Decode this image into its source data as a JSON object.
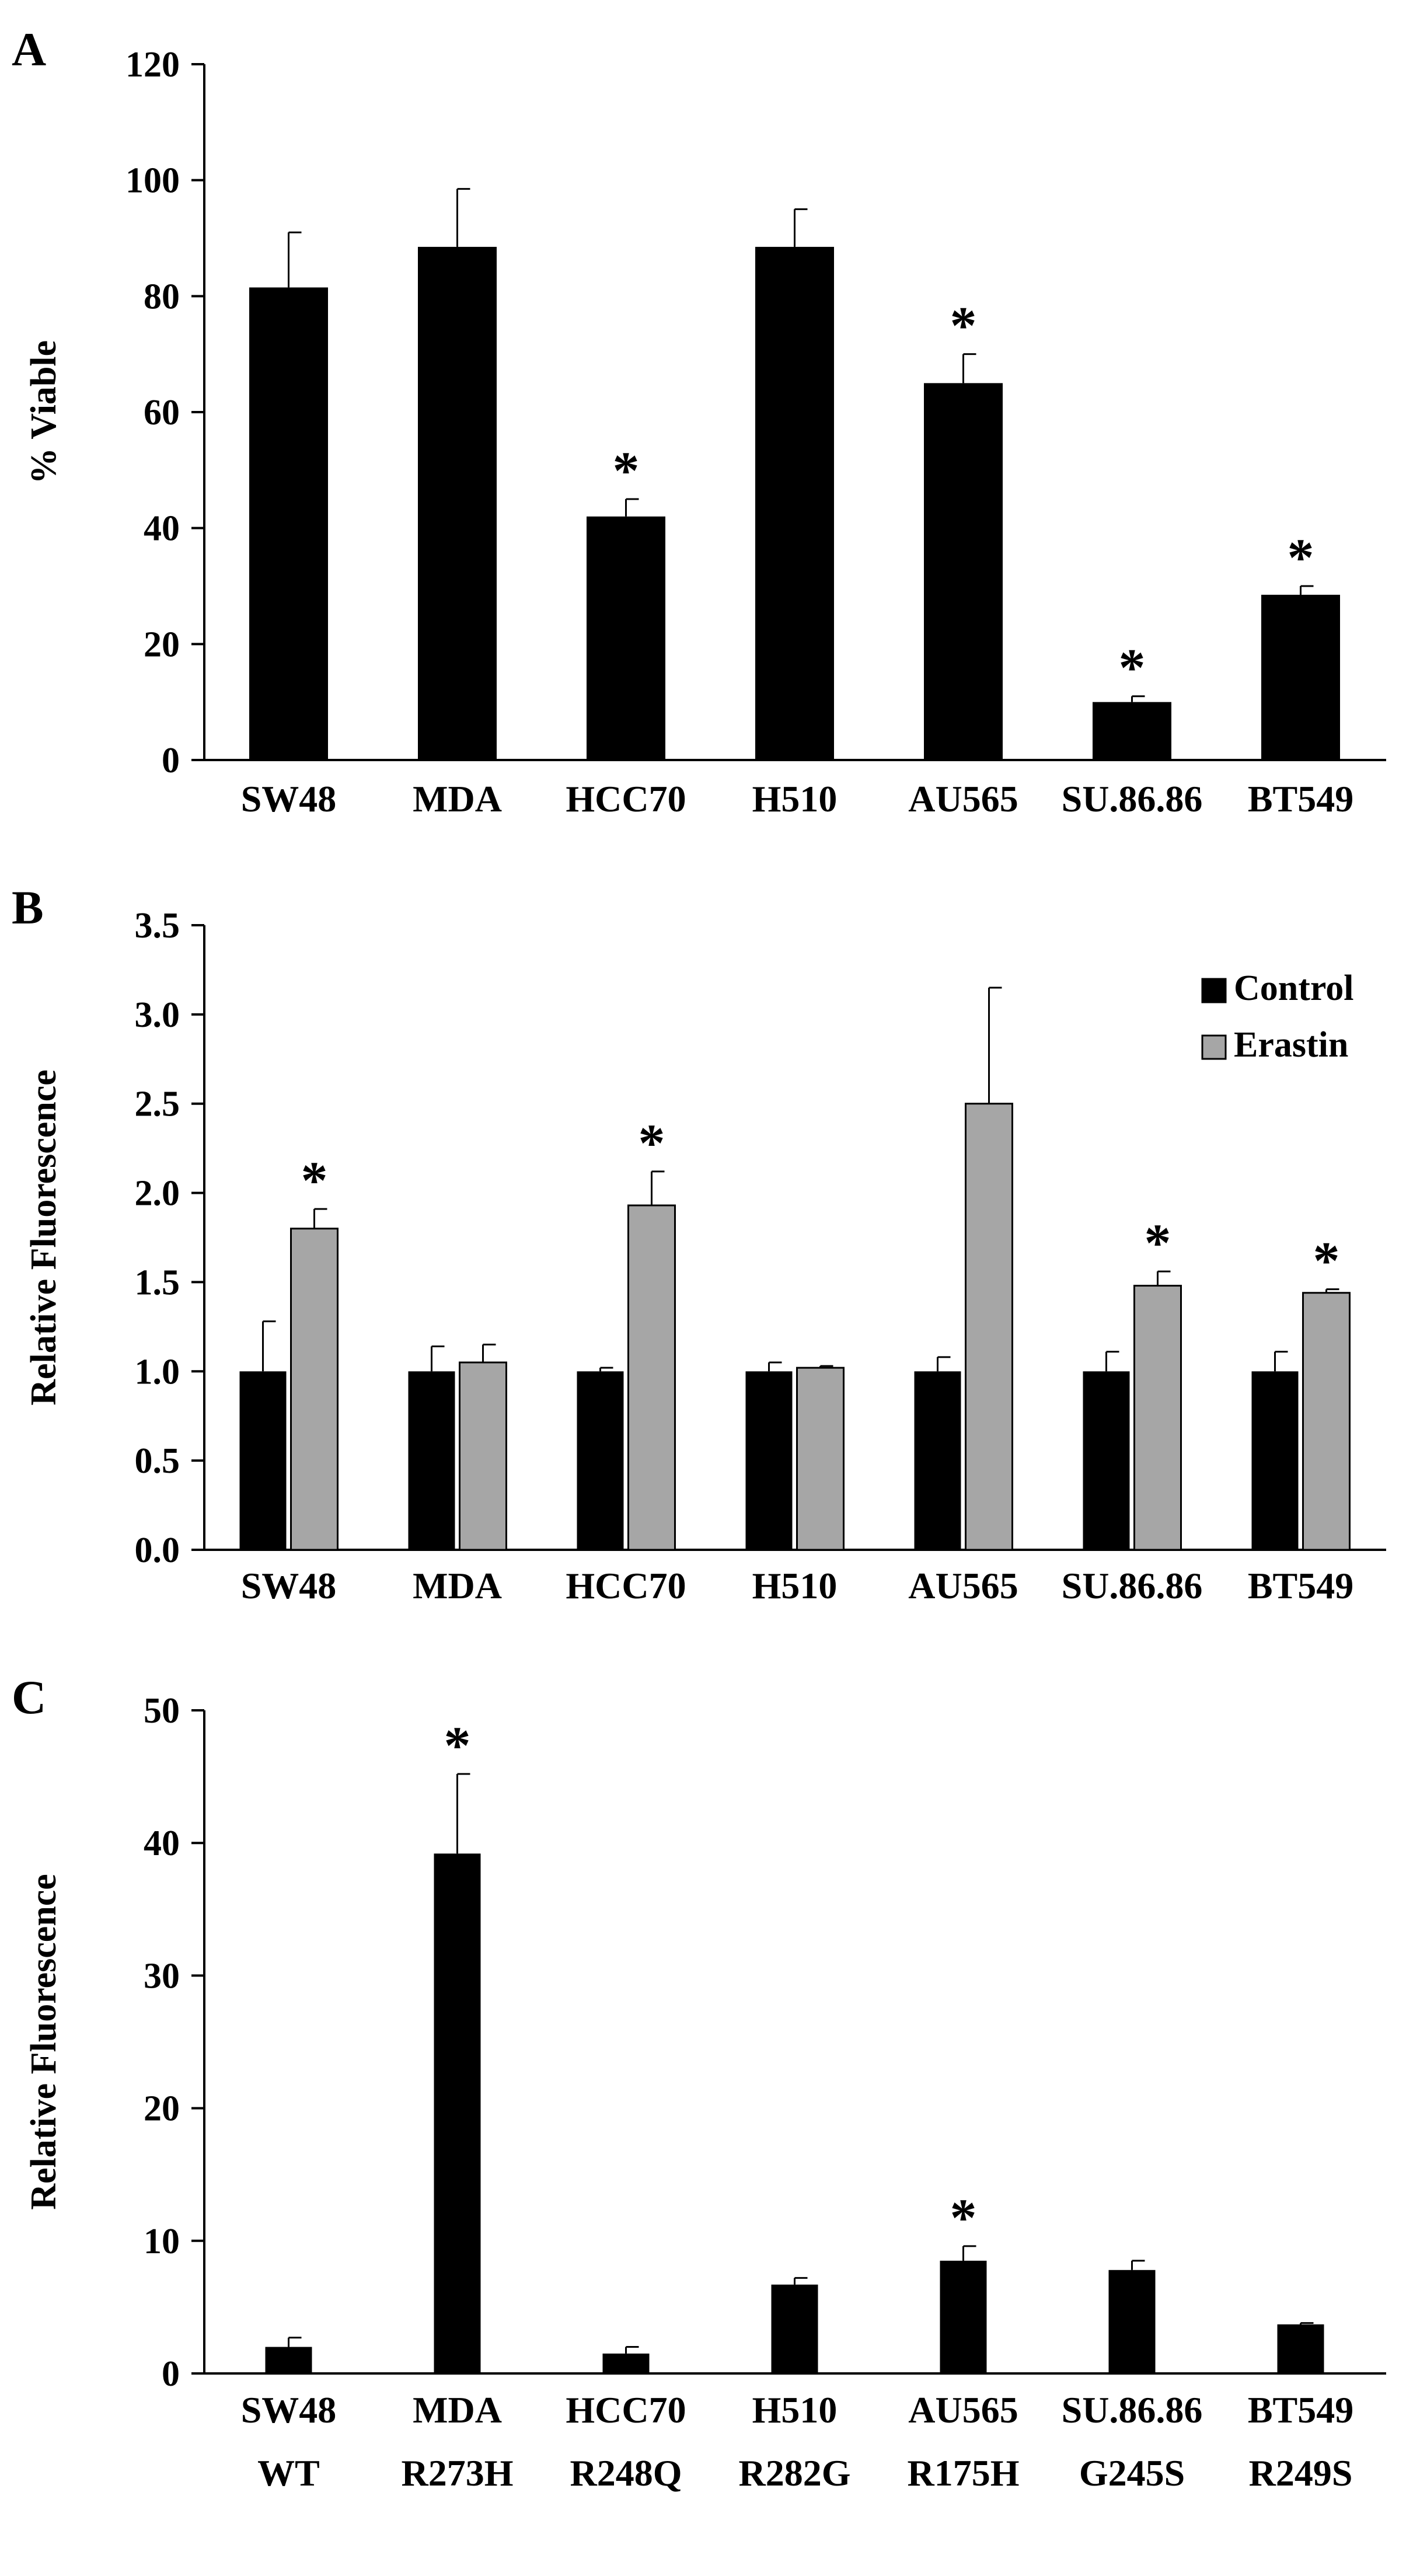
{
  "colors": {
    "control": "#000000",
    "erastin": "#a6a6a6",
    "axis": "#000000"
  },
  "chart_data": [
    {
      "panel": "A",
      "type": "bar",
      "categories": [
        "SW48",
        "MDA",
        "HCC70",
        "H510",
        "AU565",
        "SU.86.86",
        "BT549"
      ],
      "series": [
        {
          "name": "% Viable",
          "values": [
            81.5,
            88.5,
            42,
            88.5,
            65,
            10,
            28.5
          ],
          "errors": [
            9.5,
            10,
            3,
            6.5,
            5,
            1,
            1.5
          ]
        }
      ],
      "significant": [
        false,
        false,
        true,
        false,
        true,
        true,
        true
      ],
      "significance_mark": "*",
      "ylabel": "% Viable",
      "ylim": [
        0,
        120
      ],
      "yticks": [
        0,
        20,
        40,
        60,
        80,
        100,
        120
      ],
      "ytick_labels": [
        "0",
        "20",
        "40",
        "60",
        "80",
        "100",
        "120"
      ],
      "legend": null
    },
    {
      "panel": "B",
      "type": "bar",
      "categories": [
        "SW48",
        "MDA",
        "HCC70",
        "H510",
        "AU565",
        "SU.86.86",
        "BT549"
      ],
      "series": [
        {
          "name": "Control",
          "values": [
            1.0,
            1.0,
            1.0,
            1.0,
            1.0,
            1.0,
            1.0
          ],
          "errors": [
            0.28,
            0.14,
            0.02,
            0.05,
            0.08,
            0.11,
            0.11
          ]
        },
        {
          "name": "Erastin",
          "values": [
            1.8,
            1.05,
            1.93,
            1.02,
            2.5,
            1.48,
            1.44
          ],
          "errors": [
            0.11,
            0.1,
            0.19,
            0.01,
            0.65,
            0.08,
            0.02
          ]
        }
      ],
      "significant": [
        true,
        false,
        true,
        false,
        false,
        true,
        true
      ],
      "significance_mark": "*",
      "ylabel": "Relative Fluorescence",
      "ylim": [
        0,
        3.5
      ],
      "yticks": [
        0,
        0.5,
        1,
        1.5,
        2,
        2.5,
        3,
        3.5
      ],
      "ytick_labels": [
        "0.0",
        "0.5",
        "1.0",
        "1.5",
        "2.0",
        "2.5",
        "3.0",
        "3.5"
      ],
      "legend": {
        "position": "top-right",
        "entries": [
          "Control",
          "Erastin"
        ]
      }
    },
    {
      "panel": "C",
      "type": "bar",
      "categories": [
        "SW48",
        "MDA",
        "HCC70",
        "H510",
        "AU565",
        "SU.86.86",
        "BT549"
      ],
      "subcategories": [
        "WT",
        "R273H",
        "R248Q",
        "R282G",
        "R175H",
        "G245S",
        "R249S"
      ],
      "series": [
        {
          "name": "Relative Fluorescence",
          "values": [
            2,
            39.2,
            1.5,
            6.7,
            8.5,
            7.8,
            3.7
          ],
          "errors": [
            0.7,
            6,
            0.5,
            0.5,
            1.1,
            0.7,
            0.1
          ]
        }
      ],
      "significant": [
        false,
        true,
        false,
        false,
        true,
        false,
        false
      ],
      "significance_mark": "*",
      "ylabel": "Relative Fluorescence",
      "ylim": [
        0,
        50
      ],
      "yticks": [
        0,
        10,
        20,
        30,
        40,
        50
      ],
      "ytick_labels": [
        "0",
        "10",
        "20",
        "30",
        "40",
        "50"
      ],
      "legend": null
    }
  ]
}
